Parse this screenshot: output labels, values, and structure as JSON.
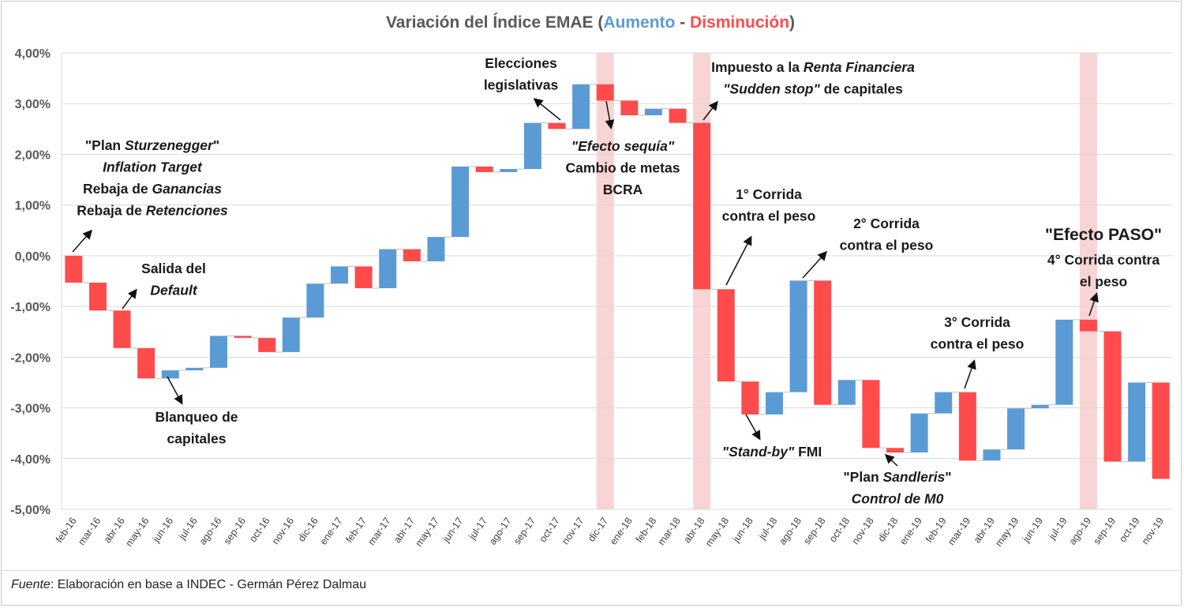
{
  "chart_data": {
    "type": "waterfall",
    "title": {
      "prefix": "Variación del Índice EMAE (",
      "increase_word": "Aumento",
      "separator": " - ",
      "decrease_word": "Disminución",
      "suffix": ")"
    },
    "colors": {
      "increase": "#5b9bd5",
      "decrease": "#ff4b4b",
      "highlight": "#f8d4d4",
      "grid": "#d9d9d9",
      "text": "#595959"
    },
    "ylim": [
      -5,
      4
    ],
    "yticks": [
      "4,00%",
      "3,00%",
      "2,00%",
      "1,00%",
      "0,00%",
      "-1,00%",
      "-2,00%",
      "-3,00%",
      "-4,00%",
      "-5,00%"
    ],
    "categories": [
      "feb-16",
      "mar-16",
      "abr-16",
      "may-16",
      "jun-16",
      "jul-16",
      "ago-16",
      "sep-16",
      "oct-16",
      "nov-16",
      "dic-16",
      "ene-17",
      "feb-17",
      "mar-17",
      "abr-17",
      "may-17",
      "jun-17",
      "jul-17",
      "ago-17",
      "sep-17",
      "oct-17",
      "nov-17",
      "dic-17",
      "ene-18",
      "feb-18",
      "mar-18",
      "abr-18",
      "may-18",
      "jun-18",
      "jul-18",
      "ago-18",
      "sep-18",
      "oct-18",
      "nov-18",
      "dic-18",
      "ene-19",
      "feb-19",
      "mar-19",
      "abr-19",
      "may-19",
      "jun-19",
      "jul-19",
      "ago-19",
      "sep-19",
      "oct-19",
      "nov-19"
    ],
    "start": [
      0,
      -0.53,
      -1.08,
      -1.82,
      -2.42,
      -2.26,
      -2.21,
      -1.58,
      -1.62,
      -1.9,
      -1.22,
      -0.55,
      -0.21,
      -0.64,
      0.13,
      -0.11,
      0.37,
      1.76,
      1.65,
      1.71,
      2.62,
      2.5,
      3.38,
      3.06,
      2.77,
      2.9,
      2.62,
      -0.66,
      -2.48,
      -3.13,
      -2.69,
      -0.49,
      -2.94,
      -2.45,
      -3.79,
      -3.88,
      -3.11,
      -2.69,
      -4.04,
      -3.82,
      -3.01,
      -2.94,
      -1.26,
      -1.49,
      -4.06,
      -2.5
    ],
    "end": [
      -0.53,
      -1.08,
      -1.82,
      -2.42,
      -2.26,
      -2.21,
      -1.58,
      -1.62,
      -1.9,
      -1.22,
      -0.55,
      -0.21,
      -0.64,
      0.13,
      -0.11,
      0.37,
      1.76,
      1.65,
      1.71,
      2.62,
      2.5,
      3.38,
      3.06,
      2.77,
      2.9,
      2.62,
      -0.66,
      -2.48,
      -3.13,
      -2.69,
      -0.49,
      -2.94,
      -2.45,
      -3.79,
      -3.88,
      -3.11,
      -2.69,
      -4.04,
      -3.82,
      -3.01,
      -2.94,
      -1.26,
      -1.49,
      -4.06,
      -2.5,
      -4.4
    ],
    "highlighted_categories": [
      "dic-17",
      "abr-18",
      "ago-19"
    ],
    "annotations": [
      {
        "lines": [
          [
            {
              "t": "\"Plan "
            },
            {
              "t": "Sturzenegger",
              "i": true
            },
            {
              "t": "\""
            }
          ],
          [
            {
              "t": "Inflation Target",
              "i": true
            }
          ],
          [
            {
              "t": "Rebaja de "
            },
            {
              "t": "Ganancias",
              "i": true
            }
          ],
          [
            {
              "t": "Rebaja de "
            },
            {
              "t": "Retenciones",
              "i": true
            }
          ]
        ]
      },
      {
        "lines": [
          [
            {
              "t": "Salida del"
            }
          ],
          [
            {
              "t": "Default",
              "i": true
            }
          ]
        ]
      },
      {
        "lines": [
          [
            {
              "t": "Blanqueo de"
            }
          ],
          [
            {
              "t": "capitales"
            }
          ]
        ]
      },
      {
        "lines": [
          [
            {
              "t": "Elecciones"
            }
          ],
          [
            {
              "t": "legislativas"
            }
          ]
        ]
      },
      {
        "lines": [
          [
            {
              "t": "\"Efecto sequía\"",
              "i": true
            }
          ],
          [
            {
              "t": "Cambio de metas"
            }
          ],
          [
            {
              "t": "BCRA"
            }
          ]
        ]
      },
      {
        "lines": [
          [
            {
              "t": "Impuesto a la "
            },
            {
              "t": "Renta Financiera",
              "i": true
            }
          ],
          [
            {
              "t": "\"Sudden stop\"",
              "i": true
            },
            {
              "t": " de capitales"
            }
          ]
        ]
      },
      {
        "lines": [
          [
            {
              "t": "1° Corrida"
            }
          ],
          [
            {
              "t": "contra el peso"
            }
          ]
        ]
      },
      {
        "lines": [
          [
            {
              "t": "\"Stand-by\"",
              "i": true
            },
            {
              "t": " FMI"
            }
          ]
        ]
      },
      {
        "lines": [
          [
            {
              "t": "2° Corrida"
            }
          ],
          [
            {
              "t": "contra el peso"
            }
          ]
        ]
      },
      {
        "lines": [
          [
            {
              "t": "\"Plan "
            },
            {
              "t": "Sandleris",
              "i": true
            },
            {
              "t": "\""
            }
          ],
          [
            {
              "t": "Control de M0",
              "i": true
            }
          ]
        ]
      },
      {
        "lines": [
          [
            {
              "t": "3° Corrida"
            }
          ],
          [
            {
              "t": "contra el peso"
            }
          ]
        ]
      },
      {
        "lines": [
          [
            {
              "t": "\"Efecto PASO\""
            }
          ]
        ]
      },
      {
        "lines": [
          [
            {
              "t": "4° Corrida contra"
            }
          ],
          [
            {
              "t": "el peso"
            }
          ]
        ]
      }
    ]
  },
  "source": {
    "label": "Fuente",
    "text": ": Elaboración en base a INDEC - Germán Pérez Dalmau"
  }
}
